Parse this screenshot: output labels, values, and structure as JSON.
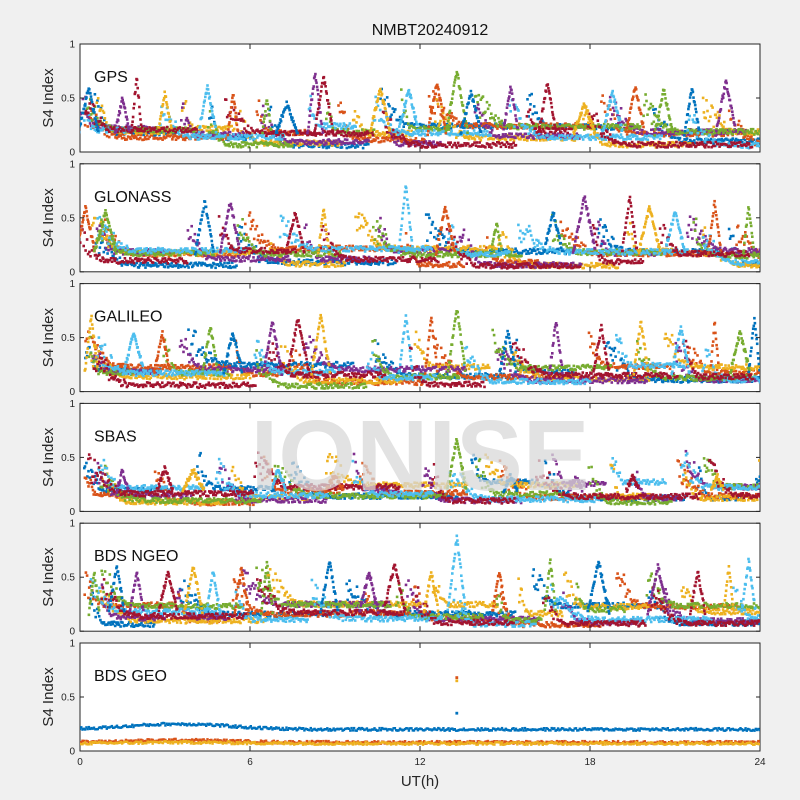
{
  "figure": {
    "title": "NMBT20240912",
    "watermark": "IONISE",
    "background": "#f0f0f0"
  },
  "palette": [
    "#0072BD",
    "#D95319",
    "#EDB120",
    "#7E2F8E",
    "#77AC30",
    "#4DBEEE",
    "#A2142F"
  ],
  "chart_data": [
    {
      "type": "scatter",
      "name": "GPS",
      "title": "",
      "xlabel": "",
      "ylabel": "S4 Index",
      "xlim": [
        0,
        24
      ],
      "ylim": [
        0,
        1
      ],
      "xticks": [
        0,
        6,
        12,
        18,
        24
      ],
      "yticks": [
        0,
        0.5,
        1
      ],
      "ytick_labels": [
        "0",
        "0.5",
        "1"
      ],
      "show_xtick_labels": false,
      "series_count": 7,
      "typical_baseline_range": [
        0.05,
        0.25
      ],
      "peak_max": 0.75,
      "peaks": [
        [
          0.3,
          0.6
        ],
        [
          1.5,
          0.5
        ],
        [
          2.0,
          0.7
        ],
        [
          3.0,
          0.55
        ],
        [
          4.5,
          0.6
        ],
        [
          5.4,
          0.55
        ],
        [
          6.6,
          0.5
        ],
        [
          7.3,
          0.45
        ],
        [
          8.3,
          0.73
        ],
        [
          8.6,
          0.7
        ],
        [
          10.6,
          0.6
        ],
        [
          11.6,
          0.58
        ],
        [
          12.6,
          0.65
        ],
        [
          13.3,
          0.75
        ],
        [
          13.8,
          0.55
        ],
        [
          15.2,
          0.62
        ],
        [
          16.5,
          0.65
        ],
        [
          17.8,
          0.45
        ],
        [
          18.8,
          0.55
        ],
        [
          19.6,
          0.6
        ],
        [
          20.6,
          0.58
        ],
        [
          21.6,
          0.6
        ],
        [
          22.8,
          0.66
        ]
      ]
    },
    {
      "type": "scatter",
      "name": "GLONASS",
      "title": "",
      "xlabel": "",
      "ylabel": "S4 Index",
      "xlim": [
        0,
        24
      ],
      "ylim": [
        0,
        1
      ],
      "xticks": [
        0,
        6,
        12,
        18,
        24
      ],
      "yticks": [
        0,
        0.5,
        1
      ],
      "ytick_labels": [
        "0",
        "0.5",
        "1"
      ],
      "show_xtick_labels": false,
      "series_count": 7,
      "typical_baseline_range": [
        0.05,
        0.25
      ],
      "peak_max": 0.82,
      "peaks": [
        [
          0.2,
          0.6
        ],
        [
          0.9,
          0.55
        ],
        [
          4.4,
          0.65
        ],
        [
          5.3,
          0.65
        ],
        [
          7.6,
          0.55
        ],
        [
          8.6,
          0.6
        ],
        [
          11.5,
          0.82
        ],
        [
          12.9,
          0.6
        ],
        [
          14.7,
          0.45
        ],
        [
          16.7,
          0.55
        ],
        [
          17.8,
          0.7
        ],
        [
          19.4,
          0.7
        ],
        [
          20.1,
          0.6
        ],
        [
          21.0,
          0.55
        ],
        [
          22.4,
          0.65
        ],
        [
          23.6,
          0.6
        ]
      ]
    },
    {
      "type": "scatter",
      "name": "GALILEO",
      "title": "",
      "xlabel": "",
      "ylabel": "S4 Index",
      "xlim": [
        0,
        24
      ],
      "ylim": [
        0,
        1
      ],
      "xticks": [
        0,
        6,
        12,
        18,
        24
      ],
      "yticks": [
        0,
        0.5,
        1
      ],
      "ytick_labels": [
        "0",
        "0.5",
        "1"
      ],
      "show_xtick_labels": false,
      "series_count": 7,
      "typical_baseline_range": [
        0.05,
        0.25
      ],
      "peak_max": 0.78,
      "peaks": [
        [
          0.4,
          0.7
        ],
        [
          1.9,
          0.55
        ],
        [
          2.9,
          0.55
        ],
        [
          4.6,
          0.6
        ],
        [
          5.4,
          0.55
        ],
        [
          6.8,
          0.65
        ],
        [
          7.7,
          0.68
        ],
        [
          8.5,
          0.7
        ],
        [
          11.5,
          0.7
        ],
        [
          12.4,
          0.68
        ],
        [
          13.3,
          0.78
        ],
        [
          15.1,
          0.55
        ],
        [
          16.8,
          0.65
        ],
        [
          18.4,
          0.6
        ],
        [
          19.8,
          0.65
        ],
        [
          21.2,
          0.6
        ],
        [
          22.4,
          0.65
        ],
        [
          23.3,
          0.55
        ],
        [
          23.8,
          0.68
        ]
      ]
    },
    {
      "type": "scatter",
      "name": "SBAS",
      "title": "",
      "xlabel": "",
      "ylabel": "S4 Index",
      "xlim": [
        0,
        24
      ],
      "ylim": [
        0,
        1
      ],
      "xticks": [
        0,
        6,
        12,
        18,
        24
      ],
      "yticks": [
        0,
        0.5,
        1
      ],
      "ytick_labels": [
        "0",
        "0.5",
        "1"
      ],
      "show_xtick_labels": false,
      "series_count": 7,
      "typical_baseline_range": [
        0.08,
        0.28
      ],
      "peak_max": 0.68,
      "peaks": [
        [
          1.5,
          0.38
        ],
        [
          3.0,
          0.4
        ],
        [
          4.0,
          0.38
        ],
        [
          7.0,
          0.4
        ],
        [
          9.0,
          0.34
        ],
        [
          13.3,
          0.68
        ],
        [
          15.2,
          0.33
        ],
        [
          17.5,
          0.32
        ],
        [
          19.5,
          0.32
        ],
        [
          22.5,
          0.32
        ]
      ]
    },
    {
      "type": "scatter",
      "name": "BDS NGEO",
      "title": "",
      "xlabel": "",
      "ylabel": "S4 Index",
      "xlim": [
        0,
        24
      ],
      "ylim": [
        0,
        1
      ],
      "xticks": [
        0,
        6,
        12,
        18,
        24
      ],
      "yticks": [
        0,
        0.5,
        1
      ],
      "ytick_labels": [
        "0",
        "0.5",
        "1"
      ],
      "show_xtick_labels": false,
      "series_count": 7,
      "typical_baseline_range": [
        0.05,
        0.25
      ],
      "peak_max": 0.87,
      "peaks": [
        [
          0.5,
          0.55
        ],
        [
          1.3,
          0.6
        ],
        [
          2.0,
          0.55
        ],
        [
          3.1,
          0.55
        ],
        [
          4.0,
          0.6
        ],
        [
          4.7,
          0.55
        ],
        [
          5.7,
          0.6
        ],
        [
          6.6,
          0.65
        ],
        [
          8.8,
          0.65
        ],
        [
          10.2,
          0.55
        ],
        [
          11.1,
          0.62
        ],
        [
          12.4,
          0.55
        ],
        [
          13.3,
          0.87
        ],
        [
          14.8,
          0.55
        ],
        [
          16.6,
          0.65
        ],
        [
          18.3,
          0.65
        ],
        [
          20.4,
          0.6
        ],
        [
          21.8,
          0.55
        ],
        [
          22.9,
          0.6
        ],
        [
          23.6,
          0.66
        ]
      ]
    },
    {
      "type": "scatter",
      "name": "BDS GEO",
      "title": "",
      "xlabel": "",
      "ylabel": "S4 Index",
      "xlim": [
        0,
        24
      ],
      "ylim": [
        0,
        1
      ],
      "xticks": [
        0,
        6,
        12,
        18,
        24
      ],
      "yticks": [
        0,
        0.5,
        1
      ],
      "ytick_labels": [
        "0",
        "0.5",
        "1"
      ],
      "xtick_labels": [
        "0",
        "6",
        "12",
        "18",
        "24"
      ],
      "show_xtick_labels": true,
      "x_axis_label": "UT(h)",
      "series": [
        {
          "color_index": 0,
          "level": 0.2,
          "bump": 0.05
        },
        {
          "color_index": 1,
          "level": 0.08,
          "bump": 0.02
        },
        {
          "color_index": 2,
          "level": 0.07,
          "bump": 0.01
        }
      ],
      "outliers": [
        [
          13.3,
          0.68
        ],
        [
          13.3,
          0.65
        ],
        [
          13.3,
          0.35
        ]
      ]
    }
  ]
}
